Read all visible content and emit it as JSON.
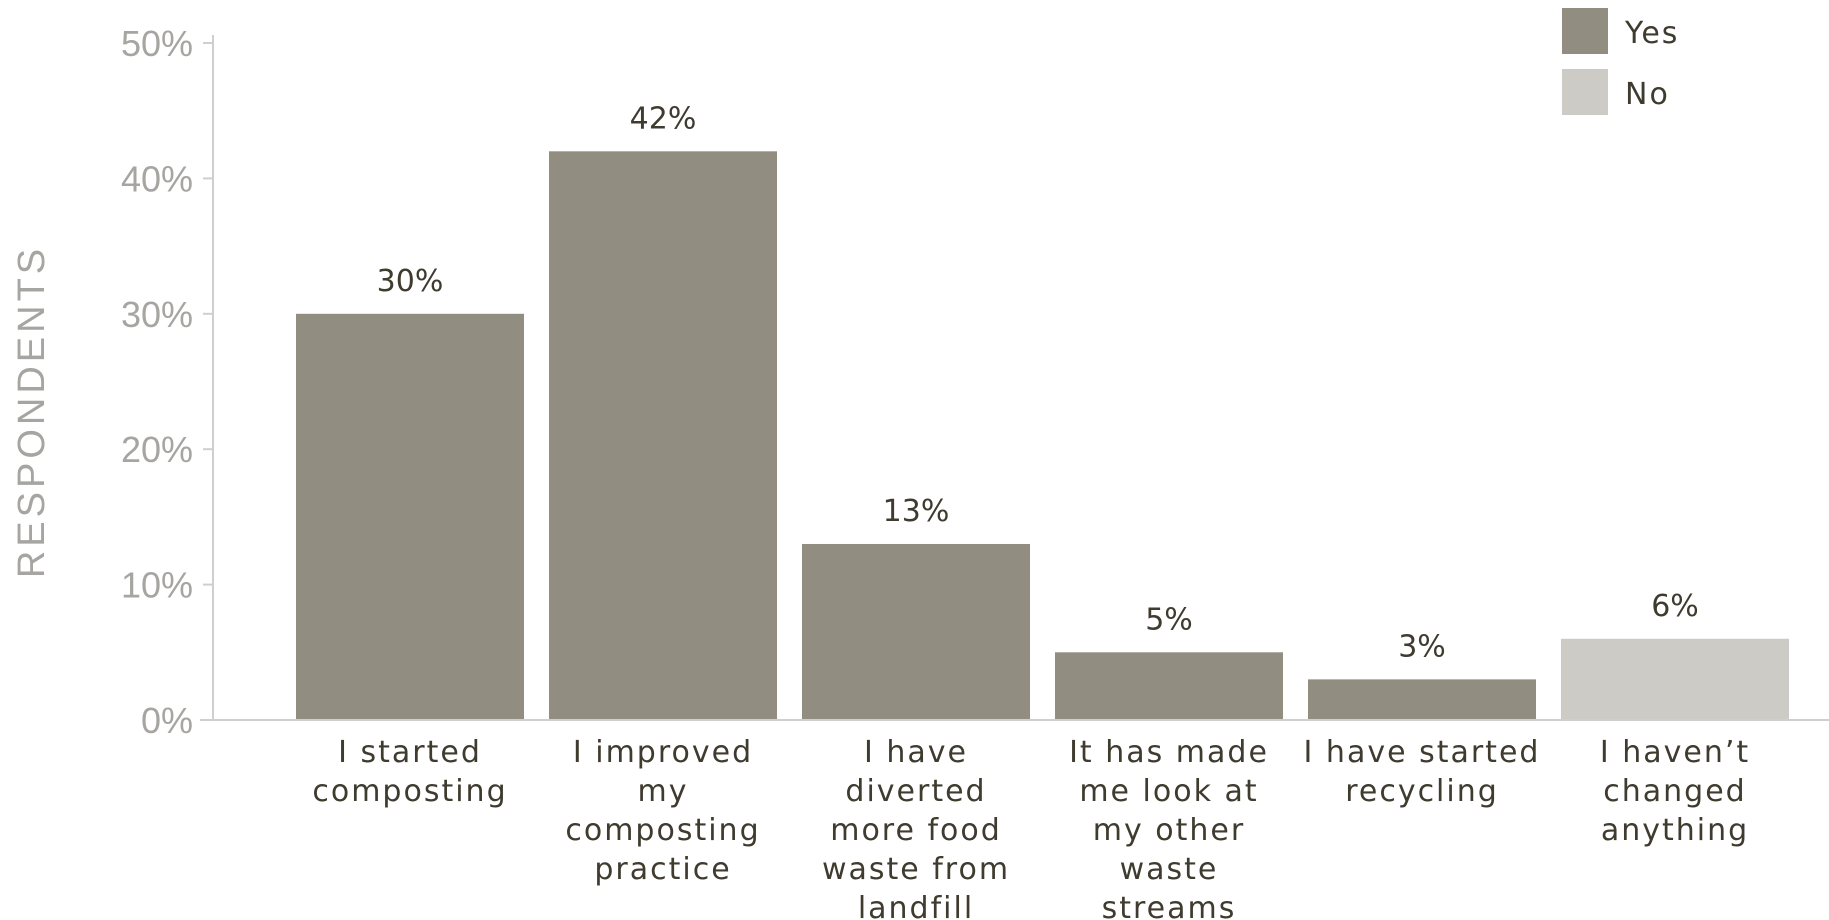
{
  "chart_data": {
    "type": "bar",
    "title": "",
    "xlabel": "",
    "ylabel": "RESPONDENTS",
    "ylim": [
      0,
      50
    ],
    "yticks": [
      "0%",
      "10%",
      "20%",
      "30%",
      "40%",
      "50%"
    ],
    "ytick_values": [
      0,
      10,
      20,
      30,
      40,
      50
    ],
    "grid": false,
    "legend_position": "top-right",
    "legend": [
      {
        "name": "Yes",
        "color": "#918d80"
      },
      {
        "name": "No",
        "color": "#cdcbc6"
      }
    ],
    "categories": [
      [
        "I started",
        "composting"
      ],
      [
        "I improved",
        "my",
        "composting",
        "practice"
      ],
      [
        "I have",
        "diverted",
        "more food",
        "waste from",
        "landfill"
      ],
      [
        "It has made",
        "me look at",
        "my other",
        "waste",
        "streams"
      ],
      [
        "I have started",
        "recycling"
      ],
      [
        "I haven’t",
        "changed",
        "anything"
      ]
    ],
    "values": [
      30,
      42,
      13,
      5,
      3,
      6
    ],
    "value_labels": [
      "30%",
      "42%",
      "13%",
      "5%",
      "3%",
      "6%"
    ],
    "bar_group": [
      "Yes",
      "Yes",
      "Yes",
      "Yes",
      "Yes",
      "No"
    ]
  }
}
